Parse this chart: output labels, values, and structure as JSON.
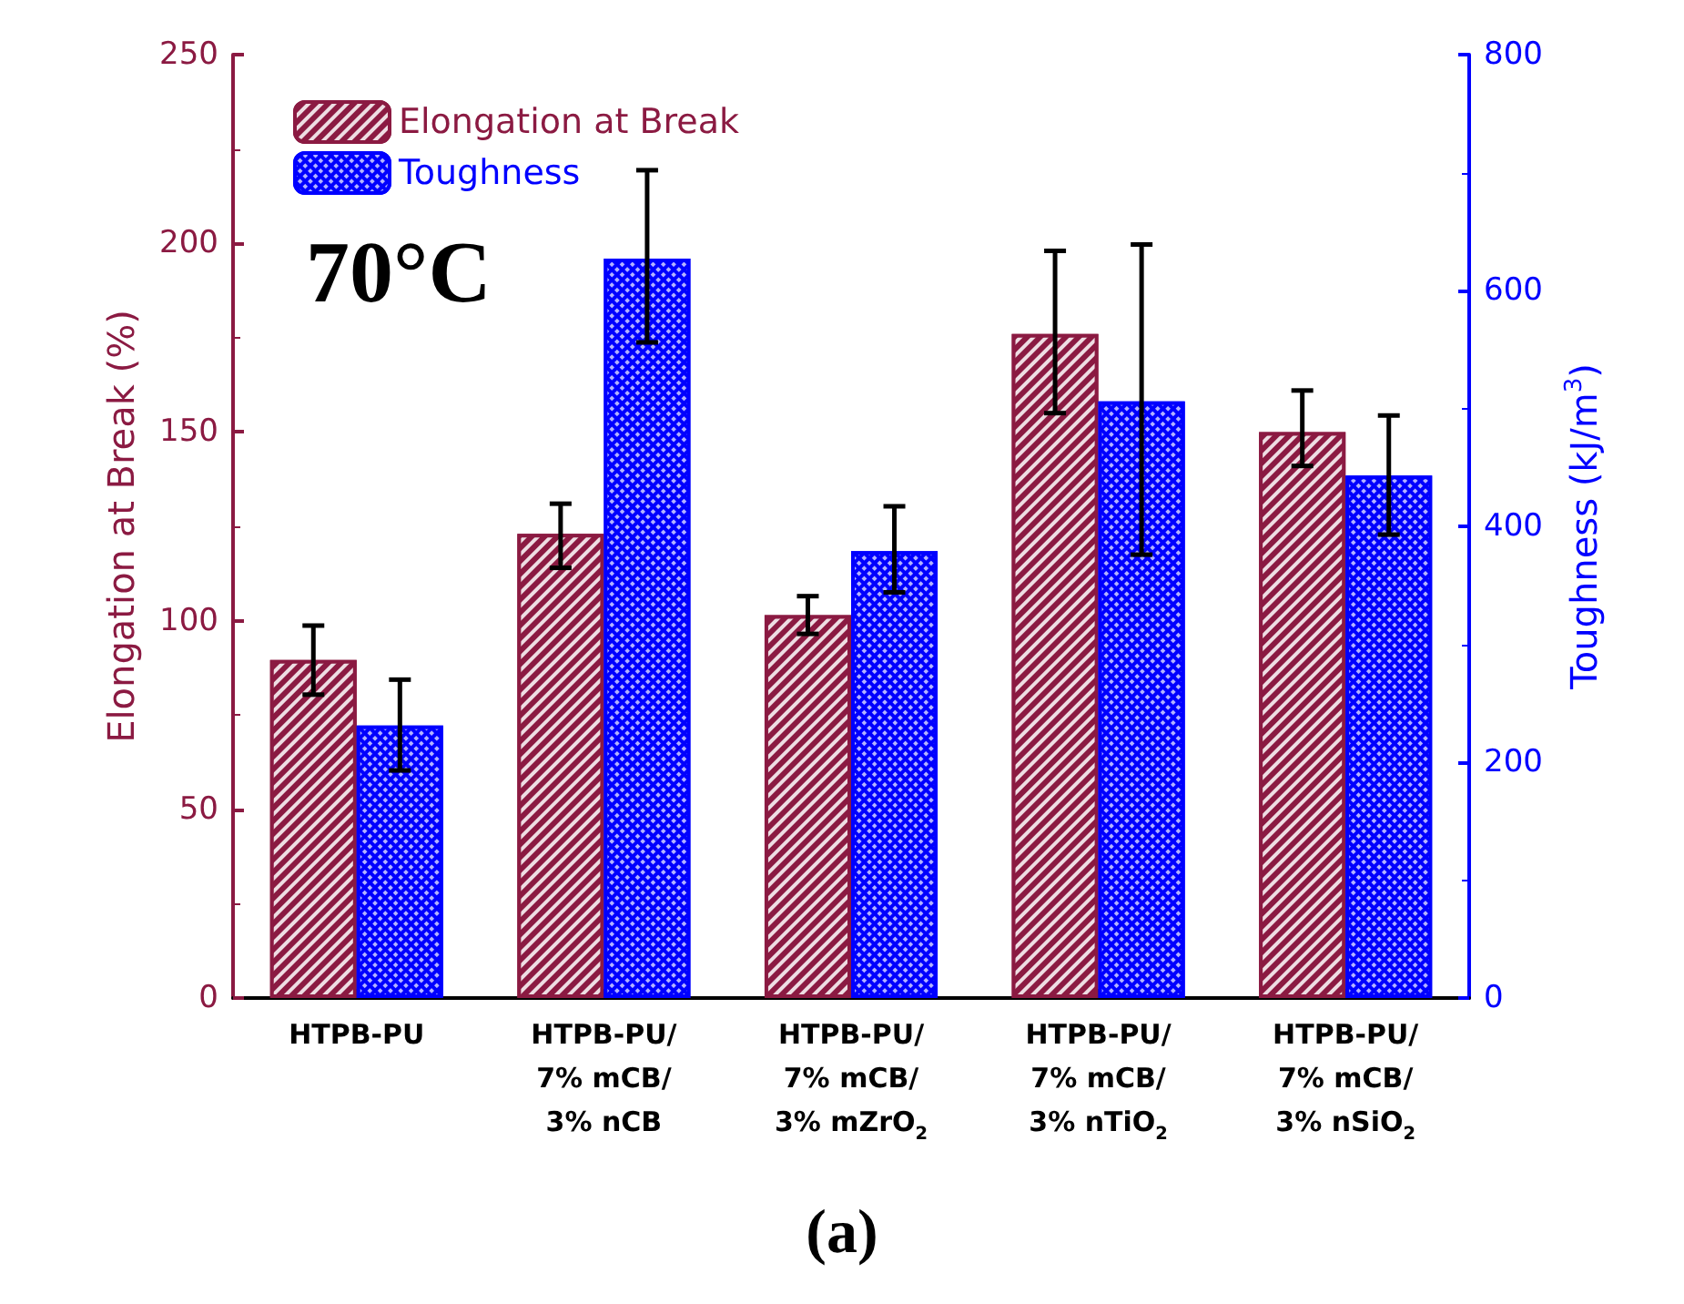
{
  "chart_data": {
    "type": "bar",
    "categories": [
      "HTPB-PU",
      "HTPB-PU/\n7% mCB/\n3% nCB",
      "HTPB-PU/\n7% mCB/\n3% mZrO$_{2}$",
      "HTPB-PU/\n7% mCB/\n3% nTiO$_{2}$",
      "HTPB-PU/\n7% mCB/\n3% nSiO$_{2}$"
    ],
    "ylabel": "Elongation at Break (%)",
    "y2label": "Toughness (kJ/m$^{3}$)",
    "series": [
      {
        "name": "Elongation at Break",
        "color": "#8b1a42",
        "values": [
          89.6,
          123,
          101.5,
          176,
          150
        ],
        "errors": [
          [
            80.4,
            98.7
          ],
          [
            114,
            131
          ],
          [
            96.5,
            106.5
          ],
          [
            155,
            198
          ],
          [
            141,
            161
          ]
        ]
      },
      {
        "name": "Toughness",
        "color": "#0000ff",
        "axis": "y2",
        "values": [
          231,
          627,
          379,
          506,
          443
        ],
        "errors": [
          [
            193,
            270
          ],
          [
            556,
            702
          ],
          [
            344,
            417
          ],
          [
            376,
            639
          ],
          [
            393,
            494
          ]
        ]
      }
    ],
    "ylim": [
      0,
      250
    ],
    "yticks": [
      0,
      50,
      100,
      150,
      200,
      250
    ],
    "y2lim": [
      0,
      800
    ],
    "y2ticks": [
      0,
      200,
      400,
      600,
      800
    ],
    "annotations": [
      "70°C",
      "(a)"
    ],
    "legend": "top left",
    "grid": false
  }
}
